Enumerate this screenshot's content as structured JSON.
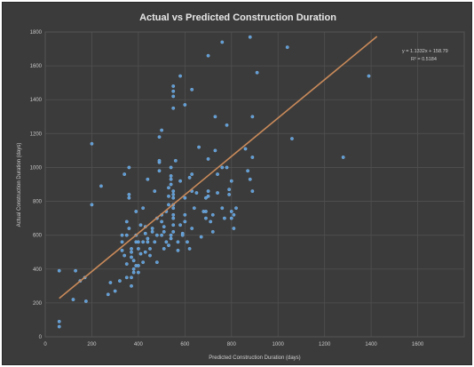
{
  "chart_data": {
    "type": "scatter",
    "title": "Actual vs Predicted Construction Duration",
    "xlabel": "Predicted Construction Duration (days)",
    "ylabel": "Actual Construction Duration (days)",
    "xlim": [
      0,
      1800
    ],
    "ylim": [
      0,
      1800
    ],
    "xticks": [
      "0",
      "200",
      "400",
      "600",
      "800",
      "1000",
      "1200",
      "1400",
      "1600"
    ],
    "yticks": [
      "0",
      "200",
      "400",
      "600",
      "800",
      "1000",
      "1200",
      "1400",
      "1600",
      "1800"
    ],
    "grid": true,
    "trendline": {
      "slope": 1.1332,
      "intercept": 158.79,
      "x_range": [
        60,
        1425
      ],
      "equation_label": "y = 1.1332x + 158.79",
      "r2_label": "R² = 0.5184"
    },
    "series": [
      {
        "points": [
          [
            60,
            60
          ],
          [
            60,
            90
          ],
          [
            60,
            390
          ],
          [
            120,
            220
          ],
          [
            130,
            390
          ],
          [
            150,
            330
          ],
          [
            170,
            350
          ],
          [
            175,
            210
          ],
          [
            200,
            1140
          ],
          [
            200,
            780
          ],
          [
            240,
            890
          ],
          [
            270,
            250
          ],
          [
            280,
            320
          ],
          [
            300,
            270
          ],
          [
            320,
            330
          ],
          [
            330,
            560
          ],
          [
            330,
            600
          ],
          [
            330,
            510
          ],
          [
            340,
            960
          ],
          [
            340,
            480
          ],
          [
            350,
            350
          ],
          [
            350,
            600
          ],
          [
            350,
            680
          ],
          [
            350,
            430
          ],
          [
            360,
            820
          ],
          [
            360,
            840
          ],
          [
            360,
            1000
          ],
          [
            360,
            640
          ],
          [
            370,
            300
          ],
          [
            370,
            350
          ],
          [
            370,
            520
          ],
          [
            370,
            500
          ],
          [
            370,
            470
          ],
          [
            380,
            400
          ],
          [
            380,
            380
          ],
          [
            380,
            450
          ],
          [
            390,
            420
          ],
          [
            390,
            560
          ],
          [
            390,
            600
          ],
          [
            390,
            740
          ],
          [
            400,
            420
          ],
          [
            400,
            380
          ],
          [
            400,
            520
          ],
          [
            400,
            560
          ],
          [
            410,
            660
          ],
          [
            410,
            490
          ],
          [
            420,
            440
          ],
          [
            420,
            560
          ],
          [
            420,
            760
          ],
          [
            430,
            610
          ],
          [
            430,
            650
          ],
          [
            430,
            500
          ],
          [
            440,
            580
          ],
          [
            440,
            930
          ],
          [
            440,
            560
          ],
          [
            450,
            480
          ],
          [
            450,
            520
          ],
          [
            460,
            640
          ],
          [
            460,
            620
          ],
          [
            470,
            860
          ],
          [
            470,
            560
          ],
          [
            480,
            440
          ],
          [
            480,
            600
          ],
          [
            480,
            700
          ],
          [
            490,
            980
          ],
          [
            490,
            1030
          ],
          [
            490,
            1180
          ],
          [
            490,
            1040
          ],
          [
            500,
            1220
          ],
          [
            500,
            720
          ],
          [
            500,
            680
          ],
          [
            500,
            600
          ],
          [
            510,
            620
          ],
          [
            510,
            650
          ],
          [
            510,
            520
          ],
          [
            520,
            560
          ],
          [
            520,
            740
          ],
          [
            530,
            830
          ],
          [
            530,
            880
          ],
          [
            530,
            780
          ],
          [
            530,
            540
          ],
          [
            540,
            950
          ],
          [
            540,
            930
          ],
          [
            540,
            900
          ],
          [
            540,
            1000
          ],
          [
            540,
            580
          ],
          [
            540,
            600
          ],
          [
            550,
            1450
          ],
          [
            550,
            1480
          ],
          [
            550,
            1420
          ],
          [
            550,
            1350
          ],
          [
            550,
            860
          ],
          [
            550,
            840
          ],
          [
            550,
            820
          ],
          [
            550,
            780
          ],
          [
            550,
            760
          ],
          [
            550,
            720
          ],
          [
            550,
            700
          ],
          [
            550,
            660
          ],
          [
            550,
            620
          ],
          [
            560,
            1040
          ],
          [
            570,
            510
          ],
          [
            570,
            560
          ],
          [
            580,
            1540
          ],
          [
            580,
            920
          ],
          [
            580,
            660
          ],
          [
            590,
            610
          ],
          [
            590,
            600
          ],
          [
            600,
            1370
          ],
          [
            600,
            820
          ],
          [
            600,
            720
          ],
          [
            600,
            680
          ],
          [
            610,
            560
          ],
          [
            620,
            940
          ],
          [
            620,
            520
          ],
          [
            630,
            1460
          ],
          [
            630,
            960
          ],
          [
            630,
            860
          ],
          [
            630,
            640
          ],
          [
            640,
            760
          ],
          [
            650,
            850
          ],
          [
            660,
            1120
          ],
          [
            670,
            590
          ],
          [
            680,
            740
          ],
          [
            690,
            820
          ],
          [
            690,
            740
          ],
          [
            690,
            700
          ],
          [
            700,
            1660
          ],
          [
            700,
            1050
          ],
          [
            700,
            860
          ],
          [
            700,
            830
          ],
          [
            710,
            680
          ],
          [
            720,
            620
          ],
          [
            720,
            720
          ],
          [
            730,
            1300
          ],
          [
            730,
            1100
          ],
          [
            740,
            960
          ],
          [
            740,
            850
          ],
          [
            760,
            1740
          ],
          [
            760,
            1000
          ],
          [
            760,
            760
          ],
          [
            770,
            700
          ],
          [
            780,
            1250
          ],
          [
            780,
            1000
          ],
          [
            790,
            870
          ],
          [
            790,
            840
          ],
          [
            800,
            920
          ],
          [
            800,
            740
          ],
          [
            800,
            700
          ],
          [
            810,
            640
          ],
          [
            810,
            720
          ],
          [
            820,
            760
          ],
          [
            860,
            1110
          ],
          [
            870,
            980
          ],
          [
            880,
            1770
          ],
          [
            880,
            930
          ],
          [
            890,
            1300
          ],
          [
            890,
            1060
          ],
          [
            890,
            860
          ],
          [
            910,
            1560
          ],
          [
            1040,
            1710
          ],
          [
            1060,
            1170
          ],
          [
            1280,
            1060
          ],
          [
            1390,
            1540
          ]
        ]
      }
    ]
  }
}
